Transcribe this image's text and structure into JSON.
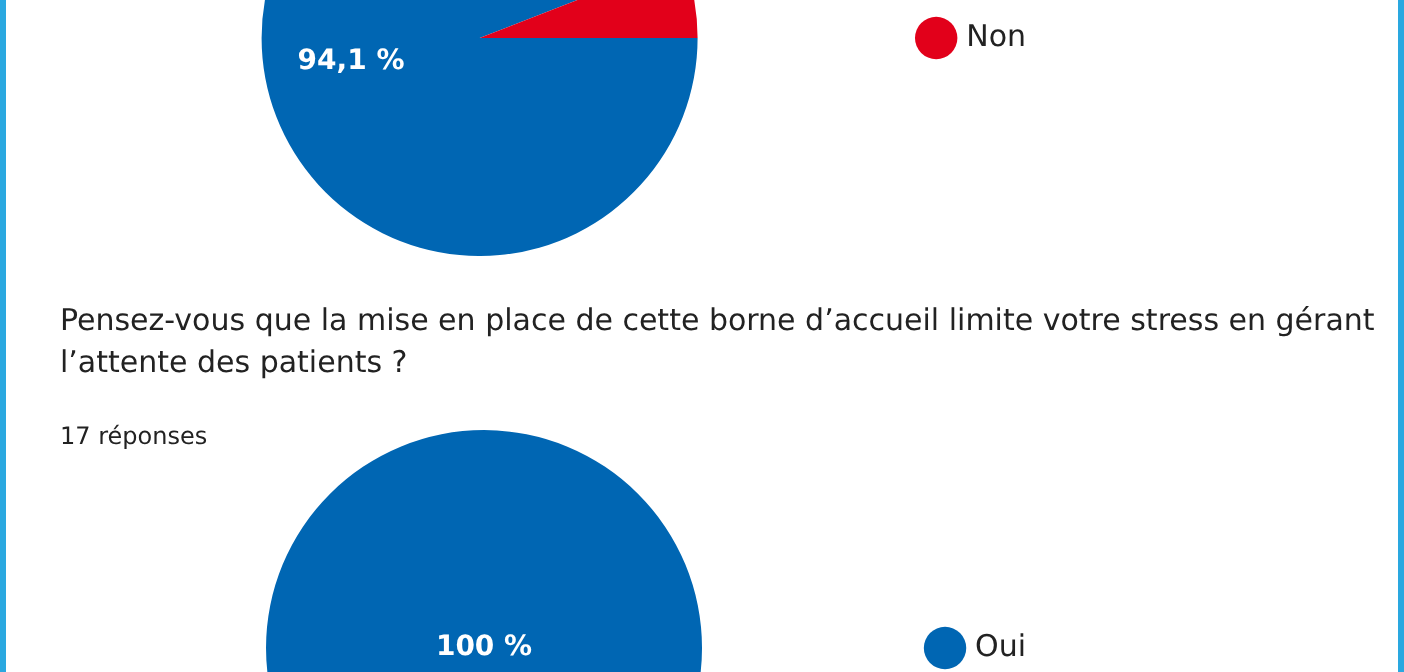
{
  "chart_data": [
    {
      "type": "pie",
      "categories": [
        null,
        "Non"
      ],
      "values": [
        94.1,
        5.9
      ],
      "colors": [
        "#0066b3",
        "#e2001a"
      ],
      "value_labels": [
        "94,1 %",
        null
      ],
      "legend": "right"
    },
    {
      "type": "pie",
      "title": "Pensez-vous que la mise en place de cette borne d’accueil limite votre stress en gérant l’attente des patients ?",
      "subtitle": "17 réponses",
      "categories": [
        "Oui"
      ],
      "values": [
        100
      ],
      "colors": [
        "#0066b3"
      ],
      "value_labels": [
        "100 %"
      ],
      "legend": "right"
    }
  ]
}
